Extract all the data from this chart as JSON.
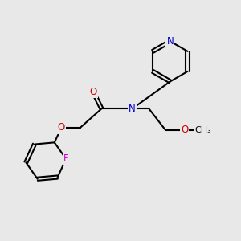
{
  "bg_color": "#e8e8e8",
  "bond_color": "#000000",
  "N_color": "#0000cc",
  "O_color": "#cc0000",
  "F_color": "#cc00cc",
  "lw": 1.5,
  "figsize": [
    3.0,
    3.0
  ],
  "dpi": 100,
  "font_size": 8.5,
  "label_N": "N",
  "label_O": "O",
  "label_F": "F",
  "label_methoxy": "OCH₃"
}
